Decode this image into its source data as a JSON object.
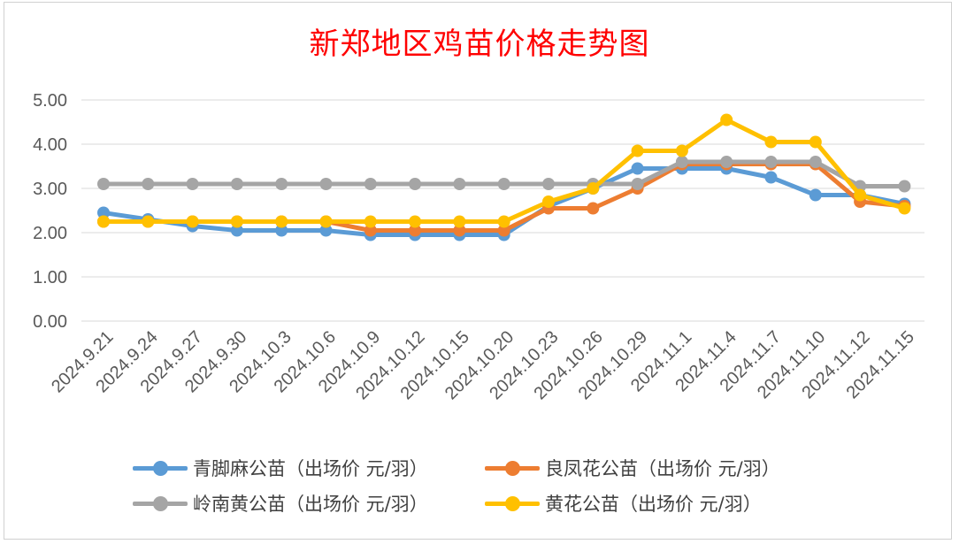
{
  "chart_data": {
    "type": "line",
    "title": "新郑地区鸡苗价格走势图",
    "categories": [
      "2024.9.21",
      "2024.9.24",
      "2024.9.27",
      "2024.9.30",
      "2024.10.3",
      "2024.10.6",
      "2024.10.9",
      "2024.10.12",
      "2024.10.15",
      "2024.10.20",
      "2024.10.23",
      "2024.10.26",
      "2024.10.29",
      "2024.11.1",
      "2024.11.4",
      "2024.11.7",
      "2024.11.10",
      "2024.11.12",
      "2024.11.15"
    ],
    "y_tick_labels": [
      "0.00",
      "1.00",
      "2.00",
      "3.00",
      "4.00",
      "5.00"
    ],
    "ylim": [
      0,
      5
    ],
    "grid": true,
    "legend_position": "bottom",
    "series": [
      {
        "name": "青脚麻公苗（出场价 元/羽）",
        "color": "#5b9bd5",
        "values": [
          2.45,
          2.3,
          2.15,
          2.05,
          2.05,
          2.05,
          1.95,
          1.95,
          1.95,
          1.95,
          2.6,
          3.0,
          3.45,
          3.45,
          3.45,
          3.25,
          2.85,
          2.85,
          2.65
        ]
      },
      {
        "name": "良凤花公苗（出场价 元/羽）",
        "color": "#ed7d31",
        "values": [
          2.25,
          2.25,
          2.25,
          2.25,
          2.25,
          2.25,
          2.05,
          2.05,
          2.05,
          2.05,
          2.55,
          2.55,
          3.0,
          3.55,
          3.55,
          3.55,
          3.55,
          2.7,
          2.6
        ]
      },
      {
        "name": "岭南黄公苗（出场价 元/羽）",
        "color": "#a5a5a5",
        "values": [
          3.1,
          3.1,
          3.1,
          3.1,
          3.1,
          3.1,
          3.1,
          3.1,
          3.1,
          3.1,
          3.1,
          3.1,
          3.1,
          3.6,
          3.6,
          3.6,
          3.6,
          3.05,
          3.05
        ]
      },
      {
        "name": "黄花公苗（出场价 元/羽）",
        "color": "#ffc000",
        "values": [
          2.25,
          2.25,
          2.25,
          2.25,
          2.25,
          2.25,
          2.25,
          2.25,
          2.25,
          2.25,
          2.7,
          3.0,
          3.85,
          3.85,
          4.55,
          4.05,
          4.05,
          2.85,
          2.55
        ]
      }
    ]
  }
}
